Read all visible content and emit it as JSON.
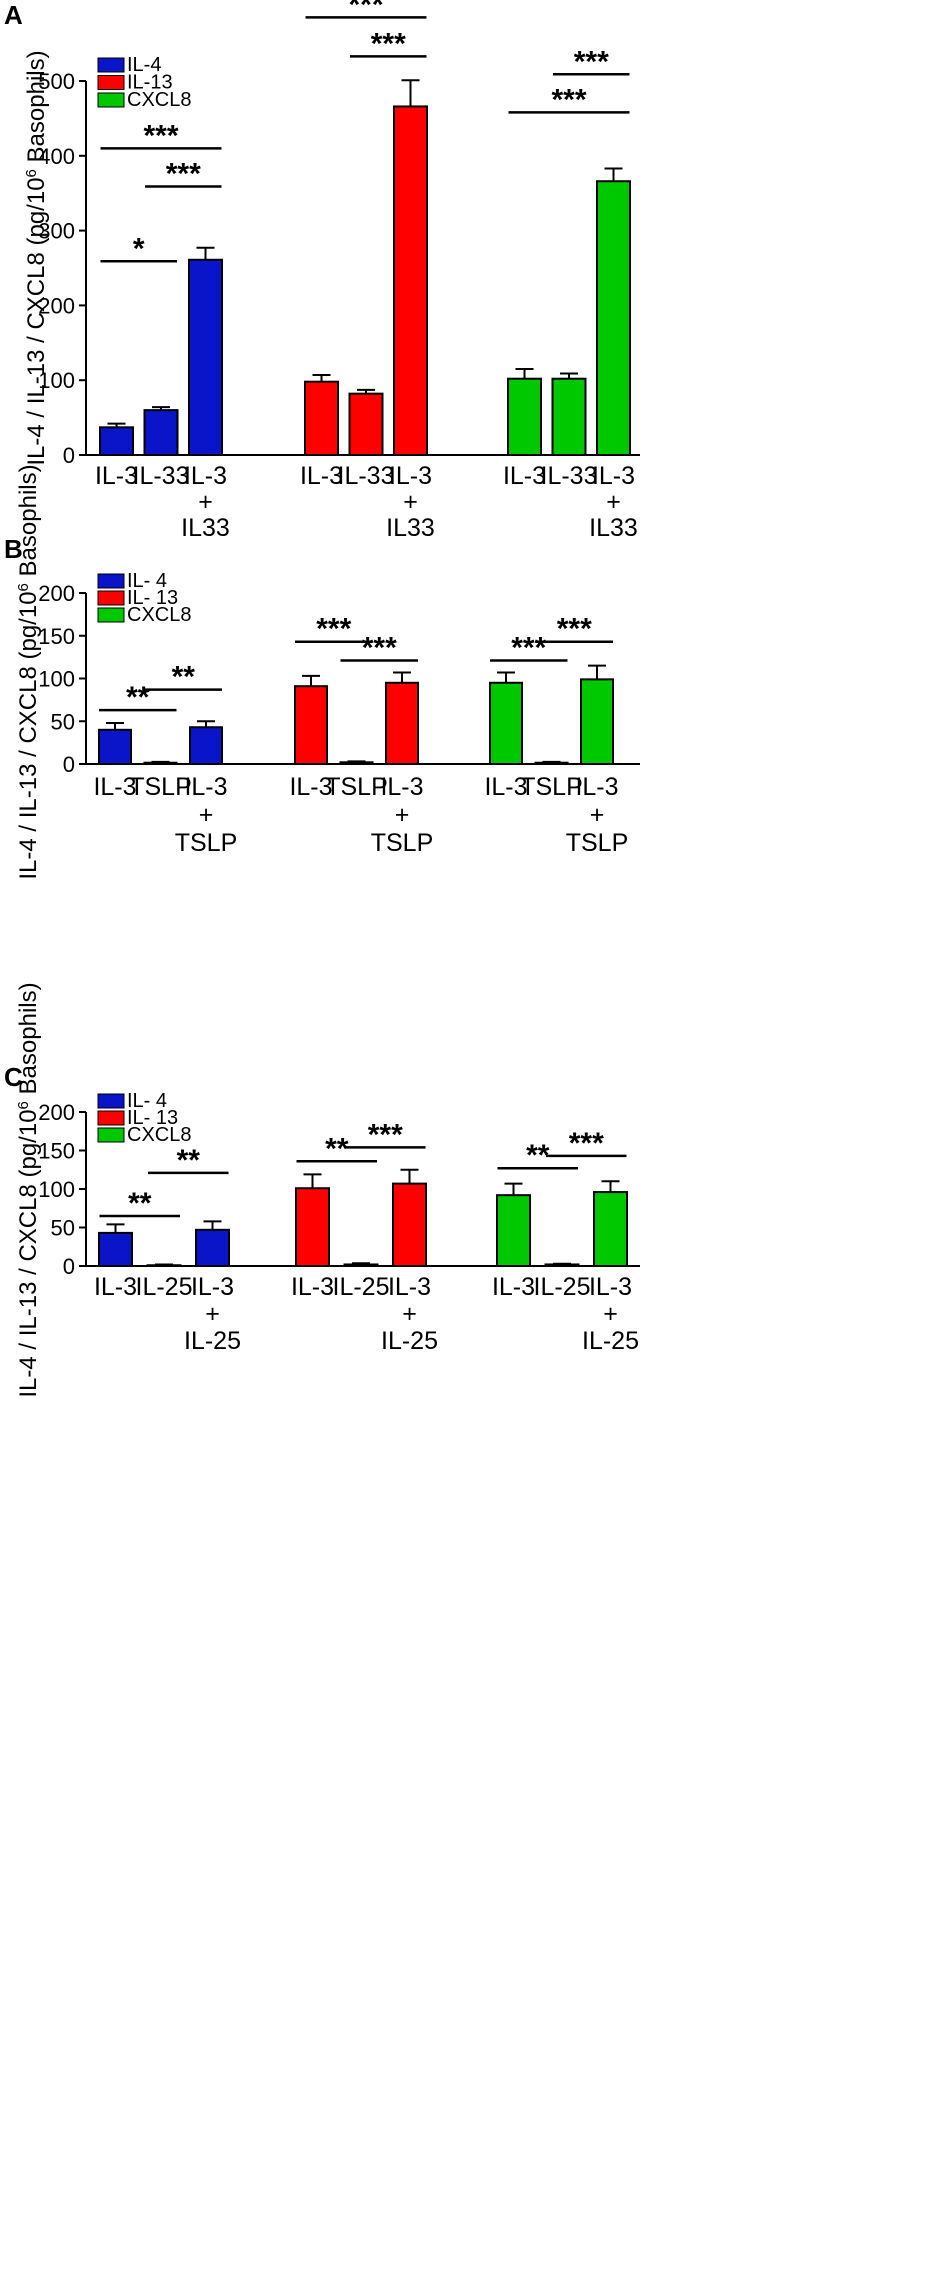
{
  "chart_data": [
    {
      "type": "bar",
      "panel": "A",
      "ylabel_main": "IL-4 / IL-13 / CXCL8 (pg/10",
      "ylabel_sup": "6",
      "ylabel_tail": " Basophils)",
      "ylim": [
        0,
        500
      ],
      "yticks": [
        0,
        100,
        200,
        300,
        400,
        500
      ],
      "legend": [
        {
          "label": "IL-4",
          "color": "#0a14c8"
        },
        {
          "label": "IL-13",
          "color": "#ff0000"
        },
        {
          "label": "CXCL8",
          "color": "#00c800"
        }
      ],
      "groups": [
        {
          "color": "#0a14c8",
          "bars": [
            {
              "value": 37,
              "err": 5,
              "label": [
                "IL-3"
              ]
            },
            {
              "value": 60,
              "err": 4,
              "label": [
                "IL-33"
              ]
            },
            {
              "value": 261,
              "err": 16,
              "label": [
                "IL-3",
                "+",
                "IL33"
              ]
            }
          ]
        },
        {
          "color": "#ff0000",
          "bars": [
            {
              "value": 98,
              "err": 9,
              "label": [
                "IL-3"
              ]
            },
            {
              "value": 82,
              "err": 5,
              "label": [
                "IL-33"
              ]
            },
            {
              "value": 466,
              "err": 35,
              "label": [
                "IL-3",
                "+",
                "IL33"
              ]
            }
          ]
        },
        {
          "color": "#00c800",
          "bars": [
            {
              "value": 102,
              "err": 13,
              "label": [
                "IL-3"
              ]
            },
            {
              "value": 102,
              "err": 7,
              "label": [
                "IL-33"
              ]
            },
            {
              "value": 366,
              "err": 17,
              "label": [
                "IL-3",
                "+",
                "IL33"
              ]
            }
          ]
        }
      ],
      "significance": [
        {
          "group": 0,
          "from": 0,
          "to": 1,
          "text": "*",
          "level": 259
        },
        {
          "group": 0,
          "from": 1,
          "to": 2,
          "text": "***",
          "level": 359
        },
        {
          "group": 0,
          "from": 0,
          "to": 2,
          "text": "***",
          "level": 410
        },
        {
          "group": 1,
          "from": 1,
          "to": 2,
          "text": "***",
          "level": 533
        },
        {
          "group": 1,
          "from": 0,
          "to": 2,
          "text": "***",
          "level": 585
        },
        {
          "group": 2,
          "from": 1,
          "to": 2,
          "text": "***",
          "level": 509
        },
        {
          "group": 2,
          "from": 0,
          "to": 2,
          "text": "***",
          "level": 458
        }
      ]
    },
    {
      "type": "bar",
      "panel": "B",
      "ylabel_main": "IL-4 / IL-13 / CXCL8 (pg/10",
      "ylabel_sup": "6",
      "ylabel_tail": " Basophils)",
      "ylim": [
        0,
        200
      ],
      "yticks": [
        0,
        50,
        100,
        150,
        200
      ],
      "legend": [
        {
          "label": "IL- 4",
          "color": "#0a14c8"
        },
        {
          "label": "IL- 13",
          "color": "#ff0000"
        },
        {
          "label": "CXCL8",
          "color": "#00c800"
        }
      ],
      "groups": [
        {
          "color": "#0a14c8",
          "bars": [
            {
              "value": 40,
              "err": 8,
              "label": [
                "IL-3"
              ]
            },
            {
              "value": 1.5,
              "err": 1,
              "label": [
                "TSLP"
              ]
            },
            {
              "value": 43,
              "err": 7,
              "label": [
                "IL-3",
                "+",
                "TSLP"
              ]
            }
          ]
        },
        {
          "color": "#ff0000",
          "bars": [
            {
              "value": 91,
              "err": 12,
              "label": [
                "IL-3"
              ]
            },
            {
              "value": 2,
              "err": 1,
              "label": [
                "TSLP"
              ]
            },
            {
              "value": 95,
              "err": 12,
              "label": [
                "IL-3",
                "+",
                "TSLP"
              ]
            }
          ]
        },
        {
          "color": "#00c800",
          "bars": [
            {
              "value": 95,
              "err": 12,
              "label": [
                "IL-3"
              ]
            },
            {
              "value": 1.5,
              "err": 1,
              "label": [
                "TSLP"
              ]
            },
            {
              "value": 99,
              "err": 16,
              "label": [
                "IL-3",
                "+",
                "TSLP"
              ]
            }
          ]
        }
      ],
      "significance": [
        {
          "group": 0,
          "from": 0,
          "to": 1,
          "text": "**",
          "level": 63
        },
        {
          "group": 0,
          "from": 1,
          "to": 2,
          "text": "**",
          "level": 87
        },
        {
          "group": 1,
          "from": 0,
          "to": 1,
          "text": "***",
          "level": 143
        },
        {
          "group": 1,
          "from": 1,
          "to": 2,
          "text": "***",
          "level": 121
        },
        {
          "group": 2,
          "from": 0,
          "to": 1,
          "text": "***",
          "level": 121
        },
        {
          "group": 2,
          "from": 1,
          "to": 2,
          "text": "***",
          "level": 143
        }
      ]
    },
    {
      "type": "bar",
      "panel": "C",
      "ylabel_main": "IL-4 / IL-13 / CXCL8 (pg/10",
      "ylabel_sup": "6",
      "ylabel_tail": " Basophils)",
      "ylim": [
        0,
        200
      ],
      "yticks": [
        0,
        50,
        100,
        150,
        200
      ],
      "legend": [
        {
          "label": "IL- 4",
          "color": "#0a14c8"
        },
        {
          "label": "IL- 13",
          "color": "#ff0000"
        },
        {
          "label": "CXCL8",
          "color": "#00c800"
        }
      ],
      "groups": [
        {
          "color": "#0a14c8",
          "bars": [
            {
              "value": 43,
              "err": 11,
              "label": [
                "IL-3"
              ]
            },
            {
              "value": 1,
              "err": 1,
              "label": [
                "IL-25"
              ]
            },
            {
              "value": 47,
              "err": 11,
              "label": [
                "IL-3",
                "+",
                "IL-25"
              ]
            }
          ]
        },
        {
          "color": "#ff0000",
          "bars": [
            {
              "value": 101,
              "err": 18,
              "label": [
                "IL-3"
              ]
            },
            {
              "value": 2,
              "err": 1.5,
              "label": [
                "IL-25"
              ]
            },
            {
              "value": 107,
              "err": 18,
              "label": [
                "IL-3",
                "+",
                "IL-25"
              ]
            }
          ]
        },
        {
          "color": "#00c800",
          "bars": [
            {
              "value": 92,
              "err": 15,
              "label": [
                "IL-3"
              ]
            },
            {
              "value": 2,
              "err": 1,
              "label": [
                "IL-25"
              ]
            },
            {
              "value": 96,
              "err": 14,
              "label": [
                "IL-3",
                "+",
                "IL-25"
              ]
            }
          ]
        }
      ],
      "significance": [
        {
          "group": 0,
          "from": 0,
          "to": 1,
          "text": "**",
          "level": 65
        },
        {
          "group": 0,
          "from": 1,
          "to": 2,
          "text": "**",
          "level": 121
        },
        {
          "group": 1,
          "from": 0,
          "to": 1,
          "text": "**",
          "level": 136
        },
        {
          "group": 1,
          "from": 1,
          "to": 2,
          "text": "***",
          "level": 154
        },
        {
          "group": 2,
          "from": 0,
          "to": 1,
          "text": "**",
          "level": 127
        },
        {
          "group": 2,
          "from": 1,
          "to": 2,
          "text": "***",
          "level": 143
        }
      ]
    }
  ]
}
